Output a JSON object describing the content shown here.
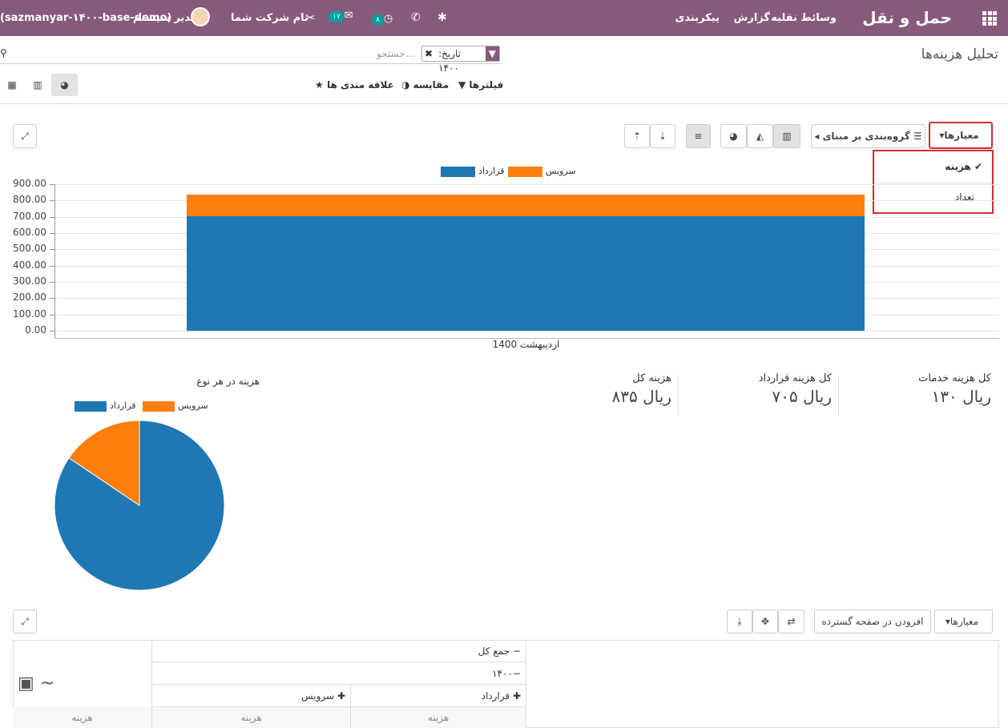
{
  "topbar": {
    "app_title": "حمل و نقل",
    "menus": [
      "وسائط نقلیه",
      "گزارش",
      "پیکربندی"
    ],
    "user_name": "مدیر سیستم",
    "db_name": "(sazmanyar-۱۴۰۰-base-demo)",
    "company": "نام شرکت شما",
    "activity_count": "۸",
    "message_count": "۱۷"
  },
  "breadcrumb": "تحلیل هزینه‌ها",
  "search": {
    "facet_label": "تاریخ: ۱۴۰۰",
    "placeholder": "جستجو..."
  },
  "search_menus": {
    "filters": "فیلترها",
    "compare": "مقایسه",
    "favorites": "علاقه مندی ها"
  },
  "graph_toolbar": {
    "measures": "معیارها",
    "group_by": "گروه‌بندی بر مبنای"
  },
  "measures_dropdown": [
    "هزینه",
    "تعداد"
  ],
  "chart_data": [
    {
      "type": "bar",
      "categories": [
        "اردیبهشت 1400"
      ],
      "series": [
        {
          "name": "قرارداد",
          "values": [
            705
          ],
          "color": "#1f77b4"
        },
        {
          "name": "سرویس",
          "values": [
            130
          ],
          "color": "#ff7f0e"
        }
      ],
      "stacked": true,
      "ylim": [
        0,
        900
      ],
      "yticks": [
        "0.00",
        "100.00",
        "200.00",
        "300.00",
        "400.00",
        "500.00",
        "600.00",
        "700.00",
        "800.00",
        "900.00"
      ],
      "legend": "top-center"
    },
    {
      "type": "pie",
      "title": "هزینه در هر نوع",
      "series": [
        {
          "name": "قرارداد",
          "values": [
            705
          ],
          "color": "#1f77b4"
        },
        {
          "name": "سرویس",
          "values": [
            130
          ],
          "color": "#ff7f0e"
        }
      ],
      "legend": "top"
    }
  ],
  "kpis": [
    {
      "label": "کل هزینه خدمات",
      "value": "۱۳۰ ریال"
    },
    {
      "label": "کل هزینه قرارداد",
      "value": "۷۰۵ ریال"
    },
    {
      "label": "هزینه کل",
      "value": "۸۳۵ ریال"
    }
  ],
  "pivot_toolbar": {
    "measures": "معیارها",
    "insert_sheet": "افزودن در صفحه گسترده"
  },
  "pivot": {
    "total_header": "جمع کل",
    "year": "۱۴۰۰",
    "cols": [
      "قرارداد",
      "سرویس"
    ],
    "measure": "هزینه"
  }
}
